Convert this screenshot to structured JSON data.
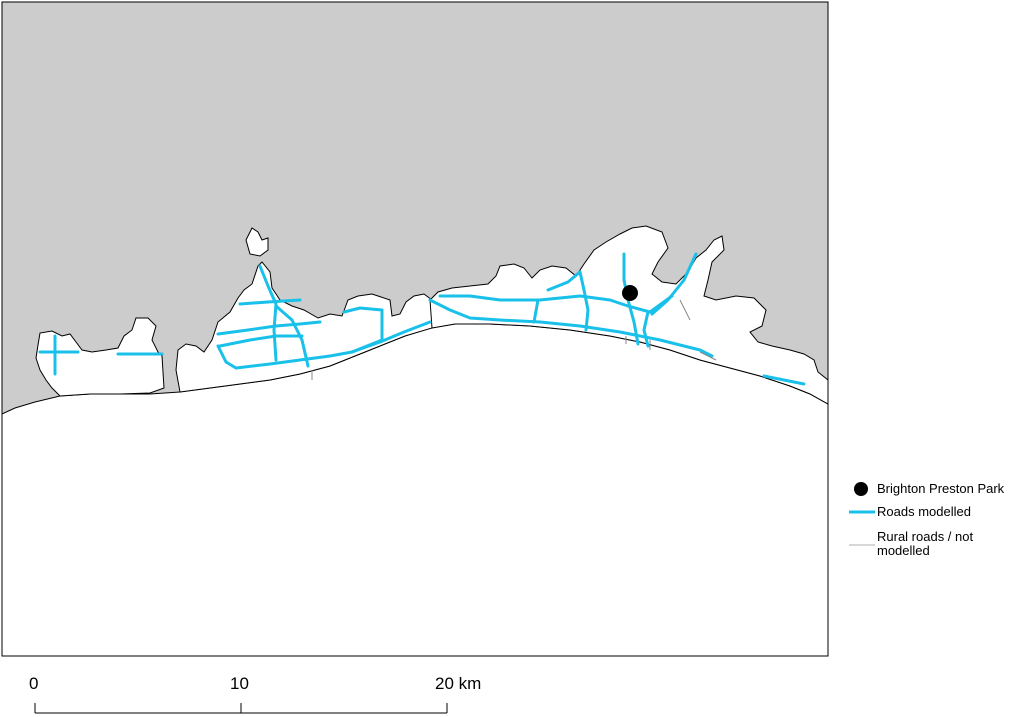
{
  "colors": {
    "land": "#cccccc",
    "sea": "#ffffff",
    "urban": "#ffffff",
    "boundary": "#000000",
    "roads_modelled": "#18c0ea",
    "rural_roads": "#b0b0b0",
    "monitor_site": "#000000"
  },
  "legend": {
    "site_label": "Brighton Preston Park",
    "roads_modelled_label": "Roads modelled",
    "rural_roads_label": "Rural roads / not modelled"
  },
  "scale_bar": {
    "label_0": "0",
    "label_10": "10",
    "label_20": "20 km"
  },
  "icons": {
    "site_marker": "filled-circle",
    "roads_line": "cyan-line",
    "rural_line": "grey-line"
  }
}
